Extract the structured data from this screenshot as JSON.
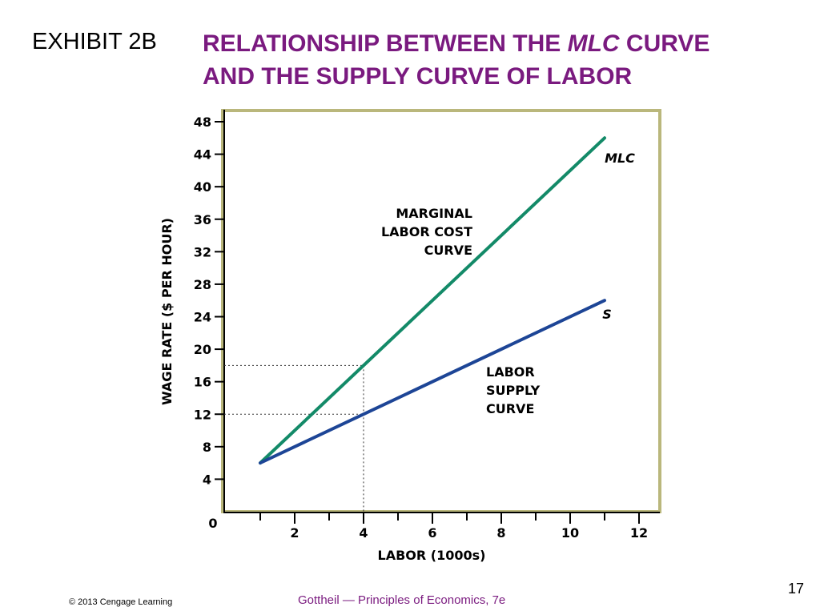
{
  "slide": {
    "exhibit_label": "EXHIBIT 2B",
    "title_part1": "RELATIONSHIP BETWEEN THE ",
    "title_italic": "MLC",
    "title_part2": " CURVE",
    "title_line2": "AND THE SUPPLY CURVE OF LABOR",
    "title_color": "#7a1a7f",
    "footer_copyright": "© 2013 Cengage Learning",
    "footer_book": "Gottheil — Principles of Economics, 7e",
    "page_number": "17"
  },
  "chart_data": {
    "type": "line",
    "xlabel": "LABOR (1000s)",
    "ylabel": "WAGE RATE ($ PER HOUR)",
    "xlim": [
      0,
      12
    ],
    "ylim": [
      0,
      48
    ],
    "x_ticks": [
      0,
      2,
      4,
      6,
      8,
      10,
      12
    ],
    "x_tick_labels": [
      "",
      "2",
      "4",
      "6",
      "8",
      "10",
      "12"
    ],
    "origin_label": "0",
    "y_ticks": [
      4,
      8,
      12,
      16,
      20,
      24,
      28,
      32,
      36,
      40,
      44,
      48
    ],
    "y_tick_labels": [
      "4",
      "8",
      "12",
      "16",
      "20",
      "24",
      "28",
      "32",
      "36",
      "40",
      "44",
      "48"
    ],
    "series": [
      {
        "name": "MLC",
        "color": "#138a68",
        "x": [
          1,
          11
        ],
        "y": [
          6,
          46
        ],
        "annotation": [
          "MARGINAL",
          "LABOR COST",
          "CURVE"
        ]
      },
      {
        "name": "S",
        "color": "#1d4596",
        "x": [
          1,
          11
        ],
        "y": [
          6,
          26
        ],
        "annotation": [
          "LABOR",
          "SUPPLY",
          "CURVE"
        ]
      }
    ],
    "reference_lines": [
      {
        "x": 4,
        "y": 18
      },
      {
        "x": 4,
        "y": 12
      }
    ],
    "frame_color": "#bab77c",
    "grid": false
  }
}
